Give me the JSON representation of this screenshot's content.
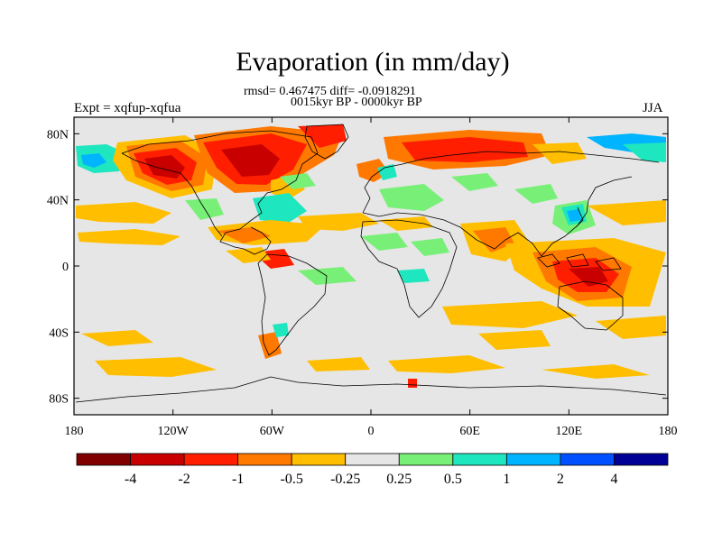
{
  "title": "Evaporation (in mm/day)",
  "stats_line": "rmsd= 0.467475 diff= -0.0918291",
  "subtitle": "0015kyr BP - 0000kyr BP",
  "left_label": "Expt = xqfup-xqfua",
  "right_label": "JJA",
  "map": {
    "projection": "cylindrical-equidistant",
    "lon_range": [
      -180,
      180
    ],
    "lat_range": [
      -90,
      90
    ],
    "background_color": "#e6e6e6",
    "coastline_color": "#000000",
    "y_ticks": [
      {
        "value": 80,
        "label": "80N"
      },
      {
        "value": 40,
        "label": "40N"
      },
      {
        "value": 0,
        "label": "0"
      },
      {
        "value": -40,
        "label": "40S"
      },
      {
        "value": -80,
        "label": "80S"
      }
    ],
    "x_ticks": [
      {
        "value": -180,
        "label": "180"
      },
      {
        "value": -120,
        "label": "120W"
      },
      {
        "value": -60,
        "label": "60W"
      },
      {
        "value": 0,
        "label": "0"
      },
      {
        "value": 60,
        "label": "60E"
      },
      {
        "value": 120,
        "label": "120E"
      },
      {
        "value": 180,
        "label": "180"
      }
    ]
  },
  "colorbar": {
    "colors": [
      "#800000",
      "#c80000",
      "#ff1e00",
      "#ff7800",
      "#ffbe00",
      "#e6e6e6",
      "#78f078",
      "#1ee6be",
      "#00b4ff",
      "#0050ff",
      "#000096"
    ],
    "labels": [
      "-4",
      "-2",
      "-1",
      "-0.5",
      "-0.25",
      "0.25",
      "0.5",
      "1",
      "2",
      "4"
    ]
  },
  "chart_data": {
    "type": "heatmap",
    "title": "Evaporation (in mm/day)",
    "variable": "Evaporation difference",
    "units": "mm/day",
    "season": "JJA",
    "experiment": "xqfup-xqfua",
    "contour_levels": [
      -4,
      -2,
      -1,
      -0.5,
      -0.25,
      0.25,
      0.5,
      1,
      2,
      4
    ],
    "regions": [
      {
        "lon": [
          -170,
          -120
        ],
        "lat": [
          55,
          72
        ],
        "level": -1
      },
      {
        "lon": [
          -165,
          -125
        ],
        "lat": [
          60,
          70
        ],
        "level": -2
      },
      {
        "lon": [
          -115,
          -60
        ],
        "lat": [
          55,
          80
        ],
        "level": -1
      },
      {
        "lon": [
          -105,
          -75
        ],
        "lat": [
          60,
          75
        ],
        "level": -2
      },
      {
        "lon": [
          -55,
          -25
        ],
        "lat": [
          68,
          80
        ],
        "level": -2
      },
      {
        "lon": [
          -178,
          -158
        ],
        "lat": [
          60,
          78
        ],
        "level": 0.5
      },
      {
        "lon": [
          -10,
          40
        ],
        "lat": [
          40,
          56
        ],
        "level": 0.5
      },
      {
        "lon": [
          120,
          145
        ],
        "lat": [
          25,
          42
        ],
        "level": 1
      },
      {
        "lon": [
          -60,
          -35
        ],
        "lat": [
          -25,
          -15
        ],
        "level": -0.25
      },
      {
        "lon": [
          20,
          95
        ],
        "lat": [
          63,
          78
        ],
        "level": -1
      },
      {
        "lon": [
          115,
          155
        ],
        "lat": [
          -30,
          -5
        ],
        "level": -2
      },
      {
        "lon": [
          150,
          180
        ],
        "lat": [
          70,
          80
        ],
        "level": 0.5
      },
      {
        "lon": [
          -50,
          -25
        ],
        "lat": [
          40,
          55
        ],
        "level": 0.5
      },
      {
        "lon": [
          -160,
          -120
        ],
        "lat": [
          -65,
          -55
        ],
        "level": -0.25
      }
    ]
  }
}
